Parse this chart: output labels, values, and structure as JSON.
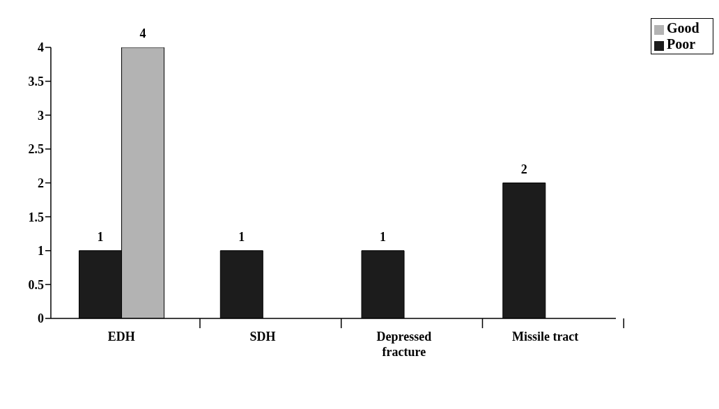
{
  "chart_data": {
    "type": "bar",
    "categories": [
      "EDH",
      "SDH",
      "Depressed fracture",
      "Missile tract"
    ],
    "series": [
      {
        "name": "Poor",
        "color": "#1c1c1c",
        "values": [
          1,
          1,
          1,
          2
        ]
      },
      {
        "name": "Good",
        "color": "#b3b3b3",
        "values": [
          4,
          null,
          null,
          null
        ]
      }
    ],
    "ylim": [
      0,
      4
    ],
    "yticks": [
      0,
      0.5,
      1,
      1.5,
      2,
      2.5,
      3,
      3.5,
      4
    ],
    "grid": false,
    "legend": "top right",
    "data_labels": true
  }
}
